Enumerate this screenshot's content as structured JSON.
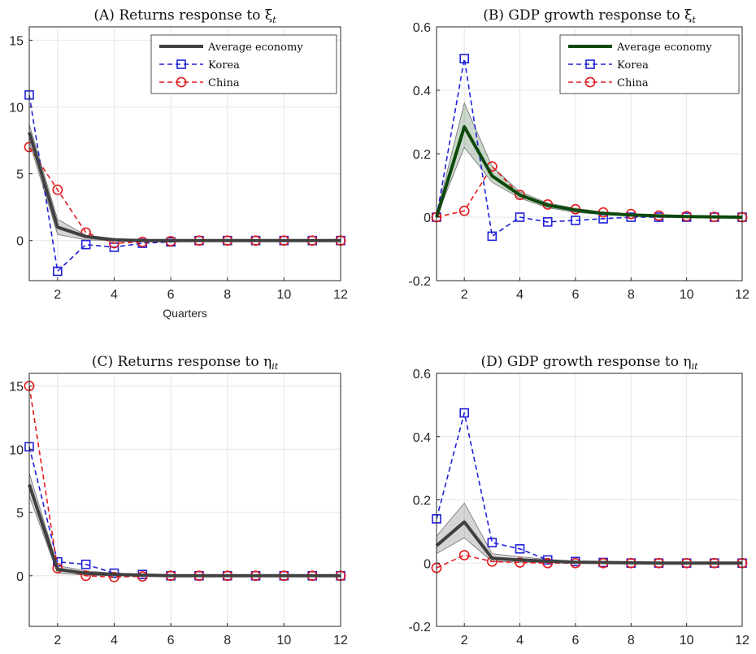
{
  "chart_data": [
    {
      "type": "line",
      "title": "(A) Returns response to ξ",
      "title_sub": "t",
      "xlabel": "Quarters",
      "ylabel": "",
      "xlim": [
        1,
        12
      ],
      "ylim": [
        -3,
        16
      ],
      "xticks": [
        2,
        4,
        6,
        8,
        10,
        12
      ],
      "yticks": [
        0,
        5,
        10,
        15
      ],
      "grid": true,
      "legend": "top-right",
      "x": [
        1,
        2,
        3,
        4,
        5,
        6,
        7,
        8,
        9,
        10,
        11,
        12
      ],
      "band": {
        "lower": [
          7.4,
          0.45,
          0.05,
          0,
          0,
          0,
          0,
          0,
          0,
          0,
          0,
          0
        ],
        "upper": [
          8.7,
          1.6,
          0.4,
          0.15,
          0.05,
          0,
          0,
          0,
          0,
          0,
          0,
          0
        ]
      },
      "series": [
        {
          "name": "Average economy",
          "color": "#404040",
          "style": "solid",
          "marker": "none",
          "values": [
            8.1,
            1.0,
            0.3,
            0.05,
            0,
            0,
            0,
            0,
            0,
            0,
            0,
            0
          ]
        },
        {
          "name": "Korea",
          "color": "#1f1fd8",
          "style": "dashed",
          "marker": "square",
          "values": [
            10.9,
            -2.3,
            -0.3,
            -0.5,
            -0.2,
            -0.1,
            0,
            0,
            0,
            0,
            0,
            0
          ]
        },
        {
          "name": "China",
          "color": "#e31a1c",
          "style": "dashed",
          "marker": "circle",
          "values": [
            7.0,
            3.8,
            0.6,
            -0.2,
            -0.1,
            -0.05,
            0,
            0,
            0,
            0,
            0,
            0
          ]
        }
      ]
    },
    {
      "type": "line",
      "title": "(B) GDP growth response to ξ",
      "title_sub": "t",
      "xlabel": "",
      "ylabel": "",
      "xlim": [
        1,
        12
      ],
      "ylim": [
        -0.2,
        0.6
      ],
      "xticks": [
        2,
        4,
        6,
        8,
        10,
        12
      ],
      "yticks": [
        -0.2,
        0,
        0.2,
        0.4,
        0.6
      ],
      "grid": true,
      "legend": "top-right",
      "x": [
        1,
        2,
        3,
        4,
        5,
        6,
        7,
        8,
        9,
        10,
        11,
        12
      ],
      "band": {
        "lower": [
          0,
          0.22,
          0.11,
          0.06,
          0.03,
          0.015,
          0.008,
          0.004,
          0.002,
          0.001,
          0,
          0
        ],
        "upper": [
          0.01,
          0.36,
          0.16,
          0.08,
          0.045,
          0.028,
          0.016,
          0.01,
          0.006,
          0.004,
          0.002,
          0.001
        ]
      },
      "series": [
        {
          "name": "Average economy",
          "color": "#0c4a0c",
          "style": "solid",
          "marker": "none",
          "values": [
            0,
            0.285,
            0.13,
            0.07,
            0.038,
            0.022,
            0.012,
            0.007,
            0.004,
            0.002,
            0.001,
            0
          ]
        },
        {
          "name": "Korea",
          "color": "#1f1fd8",
          "style": "dashed",
          "marker": "square",
          "values": [
            0,
            0.5,
            -0.06,
            0,
            -0.015,
            -0.01,
            -0.005,
            0,
            0,
            0,
            0,
            0
          ]
        },
        {
          "name": "China",
          "color": "#e31a1c",
          "style": "dashed",
          "marker": "circle",
          "values": [
            0,
            0.02,
            0.16,
            0.07,
            0.04,
            0.025,
            0.015,
            0.01,
            0.005,
            0.003,
            0.001,
            0
          ]
        }
      ]
    },
    {
      "type": "line",
      "title": "(C) Returns response to η",
      "title_sub": "it",
      "xlabel": "",
      "ylabel": "",
      "xlim": [
        1,
        12
      ],
      "ylim": [
        -4,
        16
      ],
      "xticks": [
        2,
        4,
        6,
        8,
        10,
        12
      ],
      "yticks": [
        0,
        5,
        10,
        15
      ],
      "grid": true,
      "legend": "none",
      "x": [
        1,
        2,
        3,
        4,
        5,
        6,
        7,
        8,
        9,
        10,
        11,
        12
      ],
      "band": {
        "lower": [
          6.3,
          0.2,
          0.05,
          0,
          0,
          0,
          0,
          0,
          0,
          0,
          0,
          0
        ],
        "upper": [
          8.1,
          0.8,
          0.4,
          0.2,
          0.1,
          0.05,
          0,
          0,
          0,
          0,
          0,
          0
        ]
      },
      "series": [
        {
          "name": "Average economy",
          "color": "#404040",
          "style": "solid",
          "marker": "none",
          "values": [
            7.2,
            0.5,
            0.2,
            0.1,
            0.05,
            0,
            0,
            0,
            0,
            0,
            0,
            0
          ]
        },
        {
          "name": "Korea",
          "color": "#1f1fd8",
          "style": "dashed",
          "marker": "square",
          "values": [
            10.2,
            1.1,
            0.9,
            0.2,
            0.1,
            0,
            0,
            0,
            0,
            0,
            0,
            0
          ]
        },
        {
          "name": "China",
          "color": "#e31a1c",
          "style": "dashed",
          "marker": "circle",
          "values": [
            15.0,
            0.6,
            0,
            -0.1,
            -0.05,
            0,
            0,
            0,
            0,
            0,
            0,
            0
          ]
        }
      ]
    },
    {
      "type": "line",
      "title": "(D) GDP growth response to η",
      "title_sub": "it",
      "xlabel": "",
      "ylabel": "",
      "xlim": [
        1,
        12
      ],
      "ylim": [
        -0.2,
        0.6
      ],
      "xticks": [
        2,
        4,
        6,
        8,
        10,
        12
      ],
      "yticks": [
        -0.2,
        0,
        0.2,
        0.4,
        0.6
      ],
      "grid": true,
      "legend": "none",
      "x": [
        1,
        2,
        3,
        4,
        5,
        6,
        7,
        8,
        9,
        10,
        11,
        12
      ],
      "band": {
        "lower": [
          0.03,
          0.08,
          0.005,
          0.003,
          0.002,
          0.001,
          0,
          0,
          0,
          0,
          0,
          0
        ],
        "upper": [
          0.085,
          0.19,
          0.03,
          0.02,
          0.012,
          0.006,
          0.003,
          0.002,
          0.001,
          0,
          0,
          0
        ]
      },
      "series": [
        {
          "name": "Average economy",
          "color": "#404040",
          "style": "solid",
          "marker": "none",
          "values": [
            0.055,
            0.13,
            0.015,
            0.01,
            0.006,
            0.003,
            0.002,
            0.001,
            0,
            0,
            0,
            0
          ]
        },
        {
          "name": "Korea",
          "color": "#1f1fd8",
          "style": "dashed",
          "marker": "square",
          "values": [
            0.14,
            0.475,
            0.065,
            0.045,
            0.01,
            0.005,
            0.002,
            0,
            0,
            0,
            0,
            0
          ]
        },
        {
          "name": "China",
          "color": "#e31a1c",
          "style": "dashed",
          "marker": "circle",
          "values": [
            -0.015,
            0.025,
            0.005,
            0.002,
            0,
            0,
            0,
            0,
            0,
            0,
            0,
            0
          ]
        }
      ]
    }
  ]
}
